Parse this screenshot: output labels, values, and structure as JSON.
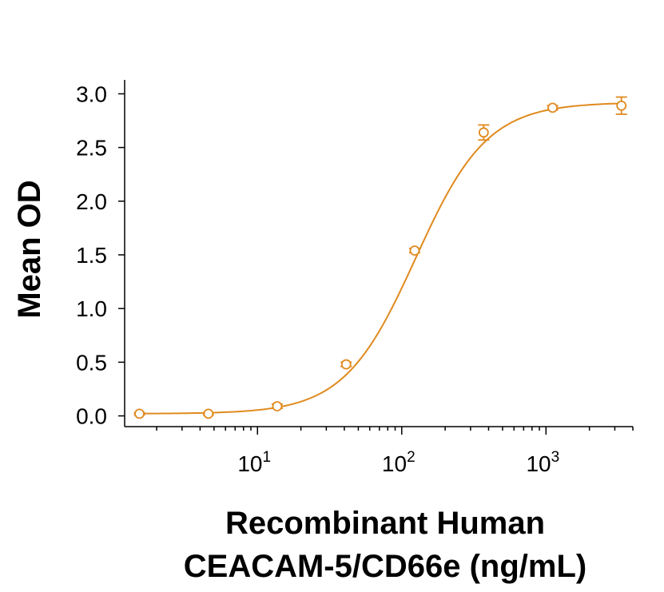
{
  "chart_data": {
    "type": "scatter",
    "xscale": "log",
    "xlim": [
      1.2,
      4000
    ],
    "ylim": [
      -0.1,
      3.1
    ],
    "x_ticks": [
      10,
      100,
      1000
    ],
    "x_tick_labels": [
      {
        "base": "10",
        "exp": "1"
      },
      {
        "base": "10",
        "exp": "2"
      },
      {
        "base": "10",
        "exp": "3"
      }
    ],
    "y_ticks": [
      0.0,
      0.5,
      1.0,
      1.5,
      2.0,
      2.5,
      3.0
    ],
    "y_tick_labels": [
      "0.0",
      "0.5",
      "1.0",
      "1.5",
      "2.0",
      "2.5",
      "3.0"
    ],
    "ylabel": "Mean OD",
    "xlabel_lines": [
      "Recombinant Human",
      "CEACAM-5/CD66e (ng/mL)"
    ],
    "color": "#E08A1E",
    "marker": "open-circle",
    "fit": {
      "model": "4PL",
      "bottom": 0.02,
      "top": 2.92,
      "ec50": 125,
      "hill": 1.75
    },
    "series": [
      {
        "x": [
          1.52,
          4.57,
          13.7,
          41.2,
          123,
          370,
          1111,
          3333
        ],
        "y": [
          0.02,
          0.02,
          0.09,
          0.48,
          1.54,
          2.64,
          2.87,
          2.89
        ],
        "err": [
          0.01,
          0.01,
          0.02,
          0.02,
          0.02,
          0.07,
          0.02,
          0.08
        ]
      }
    ]
  }
}
